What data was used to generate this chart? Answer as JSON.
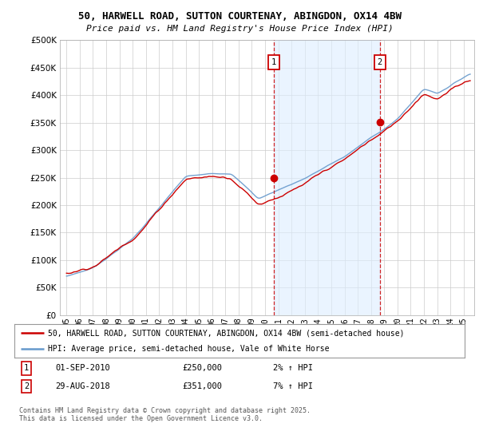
{
  "title": "50, HARWELL ROAD, SUTTON COURTENAY, ABINGDON, OX14 4BW",
  "subtitle": "Price paid vs. HM Land Registry's House Price Index (HPI)",
  "legend_line1": "50, HARWELL ROAD, SUTTON COURTENAY, ABINGDON, OX14 4BW (semi-detached house)",
  "legend_line2": "HPI: Average price, semi-detached house, Vale of White Horse",
  "annotation1_label": "1",
  "annotation1_date": "01-SEP-2010",
  "annotation1_price": "£250,000",
  "annotation1_hpi": "2% ↑ HPI",
  "annotation2_label": "2",
  "annotation2_date": "29-AUG-2018",
  "annotation2_price": "£351,000",
  "annotation2_hpi": "7% ↑ HPI",
  "footnote": "Contains HM Land Registry data © Crown copyright and database right 2025.\nThis data is licensed under the Open Government Licence v3.0.",
  "sale1_x": 2010.67,
  "sale1_y": 250000,
  "sale2_x": 2018.67,
  "sale2_y": 351000,
  "line_color": "#cc0000",
  "hpi_color": "#6699cc",
  "hpi_fill_color": "#ddeeff",
  "vline_color": "#cc0000",
  "ylim": [
    0,
    500000
  ],
  "xlim_start": 1994.5,
  "xlim_end": 2025.8,
  "yticks": [
    0,
    50000,
    100000,
    150000,
    200000,
    250000,
    300000,
    350000,
    400000,
    450000,
    500000
  ],
  "xticks": [
    1995,
    1996,
    1997,
    1998,
    1999,
    2000,
    2001,
    2002,
    2003,
    2004,
    2005,
    2006,
    2007,
    2008,
    2009,
    2010,
    2011,
    2012,
    2013,
    2014,
    2015,
    2016,
    2017,
    2018,
    2019,
    2020,
    2021,
    2022,
    2023,
    2024,
    2025
  ],
  "background_color": "#ffffff",
  "grid_color": "#cccccc"
}
